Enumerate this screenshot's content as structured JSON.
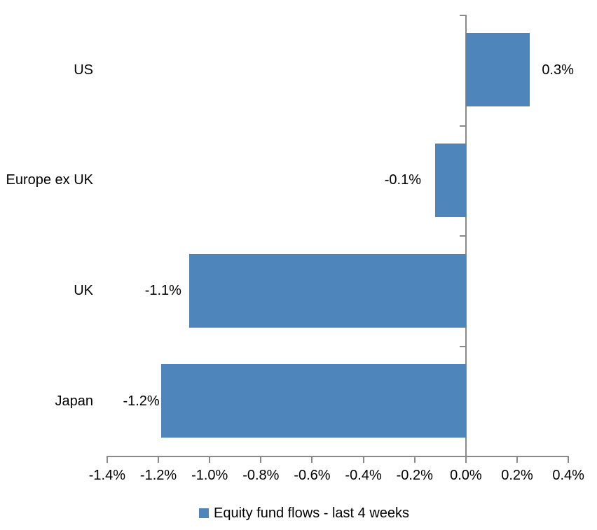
{
  "chart_data": {
    "type": "bar",
    "orientation": "horizontal",
    "title": "",
    "categories": [
      "US",
      "Europe ex UK",
      "UK",
      "Japan"
    ],
    "values_pct": [
      0.3,
      -0.1,
      -1.1,
      -1.2
    ],
    "data_labels": [
      "0.3%",
      "-0.1%",
      "-1.1%",
      "-1.2%"
    ],
    "bar_lengths_pct_measured": [
      0.25,
      -0.12,
      -1.08,
      -1.19
    ],
    "x_axis": {
      "min_pct": -1.4,
      "max_pct": 0.4,
      "step_pct": 0.2,
      "tick_labels": [
        "-1.4%",
        "-1.2%",
        "-1.0%",
        "-0.8%",
        "-0.6%",
        "-0.4%",
        "-0.2%",
        "0.0%",
        "0.2%",
        "0.4%"
      ]
    },
    "legend": {
      "label": "Equity fund flows - last 4 weeks",
      "position": "bottom",
      "marker": "square"
    },
    "gridlines": false,
    "colors": {
      "bar": "#4E86BC",
      "axis": "#8A8A8A",
      "text": "#000000",
      "background": "#FFFFFF"
    }
  }
}
